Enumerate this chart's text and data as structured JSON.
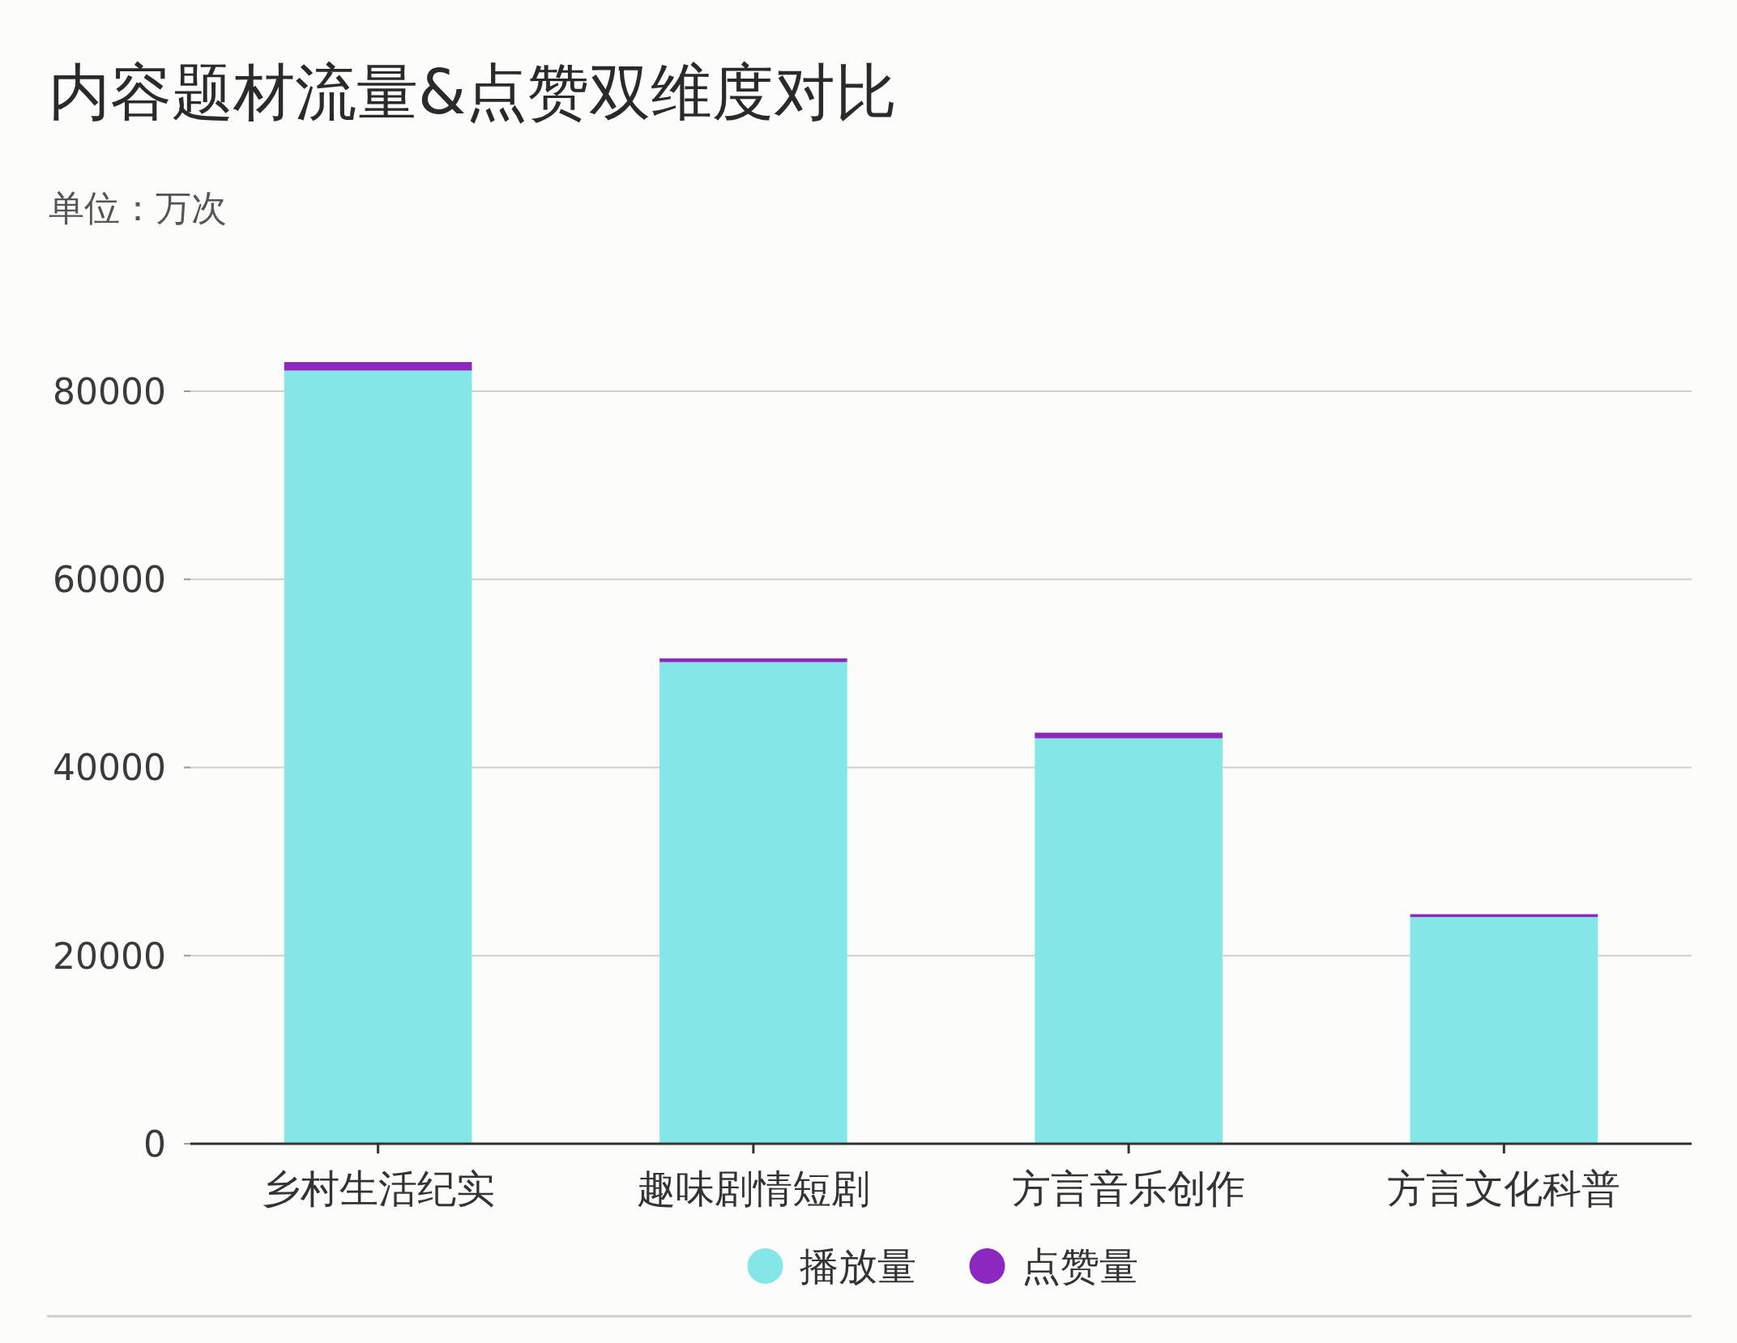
{
  "chart_data": {
    "type": "bar",
    "title": "内容题材流量&点赞双维度对比",
    "subtitle": "单位：万次",
    "categories": [
      "乡村生活纪实",
      "趣味剧情短剧",
      "方言音乐创作",
      "方言文化科普"
    ],
    "stacked": true,
    "series": [
      {
        "name": "播放量",
        "color": "#84e6e6",
        "values": [
          82200,
          51200,
          43100,
          24100
        ]
      },
      {
        "name": "点赞量",
        "color": "#8b28c0",
        "values": [
          900,
          400,
          600,
          300
        ]
      }
    ],
    "ylim": [
      0,
      83100
    ],
    "yticks": [
      0,
      20000,
      40000,
      60000,
      80000
    ],
    "grid": "y",
    "legend": "bottom"
  }
}
